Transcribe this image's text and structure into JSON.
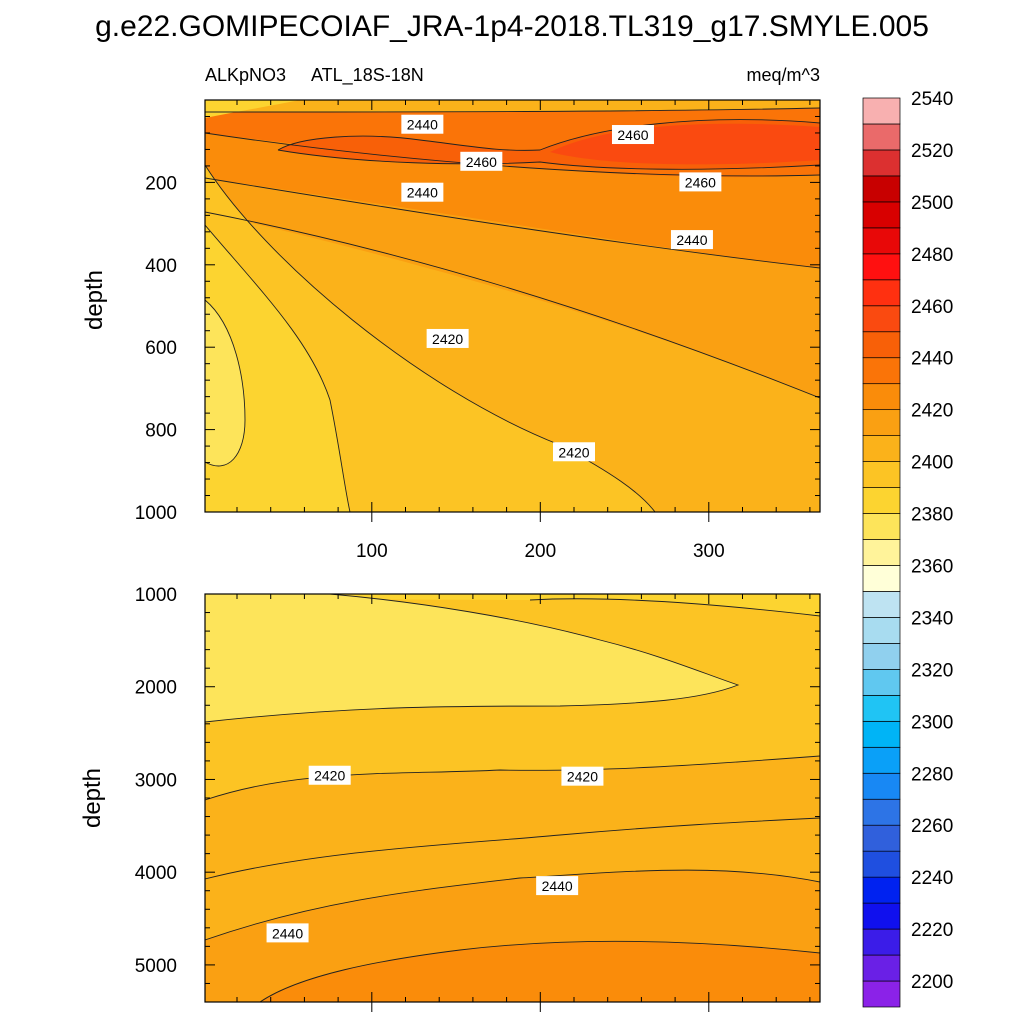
{
  "figure_title": "g.e22.GOMIPECOIAF_JRA-1p4-2018.TL319_g17.SMYLE.005",
  "chart_data": {
    "type": "contour",
    "variable": "ALKpNO3",
    "region": "ATL_18S-18N",
    "units": "meq/m^3",
    "x_ticks": [
      100,
      200,
      300
    ],
    "x_range": [
      1,
      366
    ],
    "ylabel": "depth",
    "contour_levels": [
      2200,
      2210,
      2220,
      2230,
      2240,
      2250,
      2260,
      2270,
      2280,
      2290,
      2300,
      2310,
      2320,
      2330,
      2340,
      2350,
      2360,
      2370,
      2380,
      2390,
      2400,
      2410,
      2420,
      2430,
      2440,
      2450,
      2460,
      2470,
      2480,
      2490,
      2500,
      2510,
      2520,
      2530,
      2540,
      2550
    ],
    "colorbar_labels": [
      2200,
      2220,
      2240,
      2260,
      2280,
      2300,
      2320,
      2340,
      2360,
      2380,
      2400,
      2420,
      2440,
      2460,
      2480,
      2500,
      2520,
      2540
    ],
    "colorbar_colors": [
      "#8b22e8",
      "#6a20e6",
      "#3b1ce8",
      "#1010ee",
      "#0022f0",
      "#1f4fe0",
      "#3060dc",
      "#2d74e6",
      "#1888f4",
      "#0aa0f8",
      "#00b4f6",
      "#20c4f4",
      "#60c8f0",
      "#90d0ee",
      "#a8dcf0",
      "#bee3f2",
      "#ffffd8",
      "#fff39a",
      "#fde45a",
      "#fcd430",
      "#fcc424",
      "#fbb21a",
      "#faa012",
      "#fa8c0a",
      "#fa7408",
      "#f86008",
      "#fa4a10",
      "#ff3010",
      "#ff1010",
      "#e80808",
      "#d80000",
      "#c80000",
      "#dc3030",
      "#ea6a6a",
      "#f8b0b0"
    ],
    "panels": [
      {
        "name": "upper",
        "y_range": [
          0,
          1000
        ],
        "y_ticks": [
          200,
          400,
          600,
          800,
          1000
        ],
        "contour_labels": [
          {
            "text": "2440",
            "x": 130,
            "depth": 60
          },
          {
            "text": "2460",
            "x": 255,
            "depth": 85
          },
          {
            "text": "2460",
            "x": 165,
            "depth": 150
          },
          {
            "text": "2460",
            "x": 295,
            "depth": 200
          },
          {
            "text": "2440",
            "x": 130,
            "depth": 225
          },
          {
            "text": "2440",
            "x": 290,
            "depth": 340
          },
          {
            "text": "2420",
            "x": 145,
            "depth": 580
          },
          {
            "text": "2420",
            "x": 220,
            "depth": 855
          }
        ]
      },
      {
        "name": "lower",
        "y_range": [
          1000,
          5400
        ],
        "y_ticks": [
          1000,
          2000,
          3000,
          4000,
          5000
        ],
        "contour_labels": [
          {
            "text": "2420",
            "x": 75,
            "depth": 2960
          },
          {
            "text": "2420",
            "x": 225,
            "depth": 2970
          },
          {
            "text": "2440",
            "x": 210,
            "depth": 4150
          },
          {
            "text": "2440",
            "x": 50,
            "depth": 4660
          }
        ]
      }
    ]
  }
}
